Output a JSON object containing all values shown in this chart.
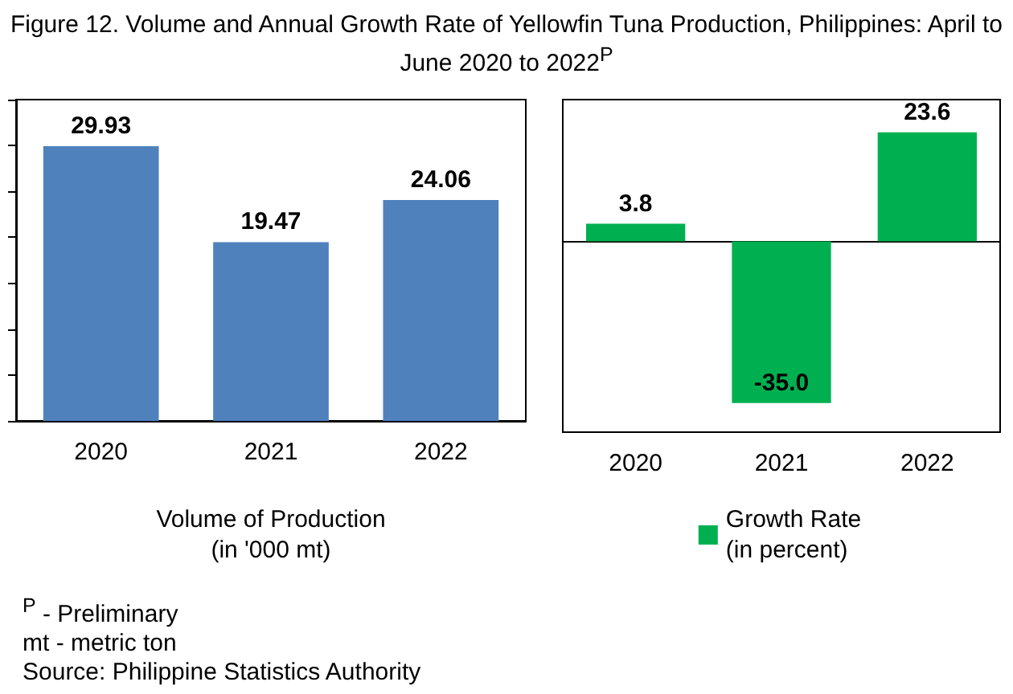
{
  "chart_data": [
    {
      "type": "bar",
      "title": "Figure 12. Volume and Annual Growth Rate of Yellowfin Tuna Production, Philippines: April to June 2020 to 2022$^{P}$",
      "categories": [
        "2020",
        "2021",
        "2022"
      ],
      "values": [
        29.93,
        19.47,
        24.06
      ],
      "color": "#4f81bd",
      "data_labels": true,
      "xlabel": "Volume of Production\n(in '000 mt)",
      "ylim": [
        0,
        35
      ],
      "yticks": [
        {
          "value": 0,
          "label": null
        },
        {
          "value": 5,
          "label": null
        },
        {
          "value": 10,
          "label": null
        },
        {
          "value": 15,
          "label": null
        },
        {
          "value": 20,
          "label": null
        },
        {
          "value": 25,
          "label": null
        },
        {
          "value": 30,
          "label": null
        },
        {
          "value": 35,
          "label": null
        }
      ],
      "tick_labels": "x",
      "annotations": [
        "$^{P}$ - Preliminary",
        "mt - metric ton",
        "Source: Philippine Statistics Authority"
      ]
    },
    {
      "type": "bar",
      "categories": [
        "2020",
        "2021",
        "2022"
      ],
      "series": [
        {
          "name": "Growth Rate\n(in percent)",
          "color": "#00b050",
          "values": [
            3.8,
            -35.0,
            23.6
          ],
          "value_labels": [
            "3.8",
            "-35.0",
            "23.6"
          ]
        }
      ],
      "legend": "bottom"
    }
  ]
}
